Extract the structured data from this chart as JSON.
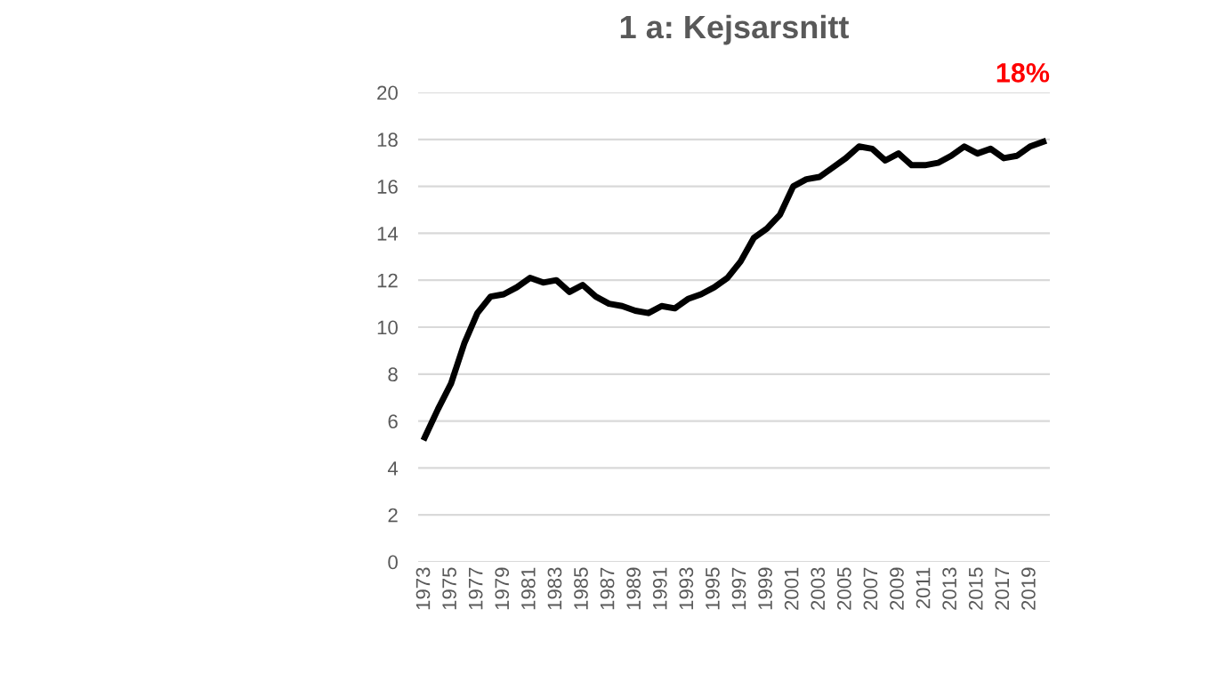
{
  "chart_data": {
    "type": "line",
    "title": "1 a: Kejsarsnitt",
    "categories": [
      "1973",
      null,
      "1975",
      null,
      "1977",
      null,
      "1979",
      null,
      "1981",
      null,
      "1983",
      null,
      "1985",
      null,
      "1987",
      null,
      "1989",
      null,
      "1991",
      null,
      "1993",
      null,
      "1995",
      null,
      "1997",
      null,
      "1999",
      null,
      "2001",
      null,
      "2003",
      null,
      "2005",
      null,
      "2007",
      null,
      "2009",
      null,
      "2011",
      null,
      "2013",
      null,
      "2015",
      null,
      "2017",
      null,
      "2019",
      null
    ],
    "series": [
      {
        "color": "#000000",
        "values": [
          5.3,
          6.5,
          7.6,
          9.3,
          10.6,
          11.3,
          11.4,
          11.7,
          12.1,
          11.9,
          12.0,
          11.5,
          11.8,
          11.3,
          11.0,
          10.9,
          10.7,
          10.6,
          10.9,
          10.8,
          11.2,
          11.4,
          11.7,
          12.1,
          12.8,
          13.8,
          14.2,
          14.8,
          16.0,
          16.3,
          16.4,
          16.8,
          17.2,
          17.7,
          17.6,
          17.1,
          17.4,
          16.9,
          16.9,
          17.0,
          17.3,
          17.7,
          17.4,
          17.6,
          17.2,
          17.3,
          17.7,
          17.9
        ]
      }
    ],
    "ylim": [
      0,
      20
    ],
    "yticks": [
      0,
      2,
      4,
      6,
      8,
      10,
      12,
      14,
      16,
      18,
      20
    ],
    "grid": "y",
    "legend": false,
    "marker": "none",
    "line_style": "solid",
    "annotations": [
      "18%"
    ]
  }
}
